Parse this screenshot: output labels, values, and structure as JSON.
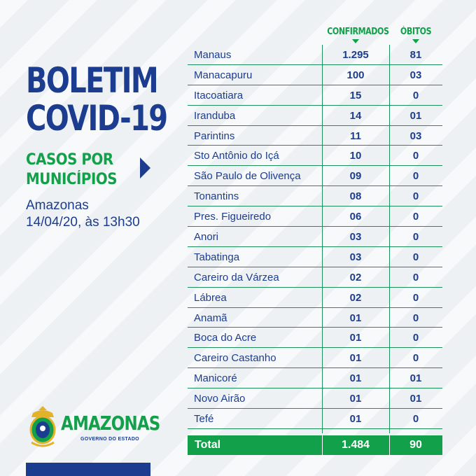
{
  "header": {
    "title_line1": "BOLETIM",
    "title_line2": "COVID-19",
    "subtitle_line1": "CASOS POR",
    "subtitle_line2": "MUNICÍPIOS",
    "location": "Amazonas",
    "date": "14/04/20, às 13h30"
  },
  "columns": {
    "confirmed": "CONFIRMADOS",
    "deaths": "ÓBITOS"
  },
  "rows": [
    {
      "municipio": "Manaus",
      "confirmados": "1.295",
      "obitos": "81"
    },
    {
      "municipio": "Manacapuru",
      "confirmados": "100",
      "obitos": "03"
    },
    {
      "municipio": "Itacoatiara",
      "confirmados": "15",
      "obitos": "0"
    },
    {
      "municipio": "Iranduba",
      "confirmados": "14",
      "obitos": "01"
    },
    {
      "municipio": "Parintins",
      "confirmados": "11",
      "obitos": "03"
    },
    {
      "municipio": "Sto Antônio do Içá",
      "confirmados": "10",
      "obitos": "0"
    },
    {
      "municipio": "São Paulo de Olivença",
      "confirmados": "09",
      "obitos": "0"
    },
    {
      "municipio": "Tonantins",
      "confirmados": "08",
      "obitos": "0"
    },
    {
      "municipio": "Pres. Figueiredo",
      "confirmados": "06",
      "obitos": "0"
    },
    {
      "municipio": "Anori",
      "confirmados": "03",
      "obitos": "0"
    },
    {
      "municipio": "Tabatinga",
      "confirmados": "03",
      "obitos": "0"
    },
    {
      "municipio": "Careiro da Várzea",
      "confirmados": "02",
      "obitos": "0"
    },
    {
      "municipio": "Lábrea",
      "confirmados": "02",
      "obitos": "0"
    },
    {
      "municipio": "Anamã",
      "confirmados": "01",
      "obitos": "0"
    },
    {
      "municipio": "Boca do Acre",
      "confirmados": "01",
      "obitos": "0"
    },
    {
      "municipio": "Careiro Castanho",
      "confirmados": "01",
      "obitos": "0"
    },
    {
      "municipio": "Manicoré",
      "confirmados": "01",
      "obitos": "01"
    },
    {
      "municipio": "Novo Airão",
      "confirmados": "01",
      "obitos": "01"
    },
    {
      "municipio": "Tefé",
      "confirmados": "01",
      "obitos": "0"
    }
  ],
  "total": {
    "label": "Total",
    "confirmados": "1.484",
    "obitos": "90"
  },
  "logo": {
    "name": "AMAZONAS",
    "subtitle": "GOVERNO DO ESTADO",
    "icon": "coat-of-arms-icon"
  },
  "colors": {
    "primary_blue": "#1c3d8f",
    "accent_green": "#12a04a",
    "background": "#eef1f3"
  }
}
